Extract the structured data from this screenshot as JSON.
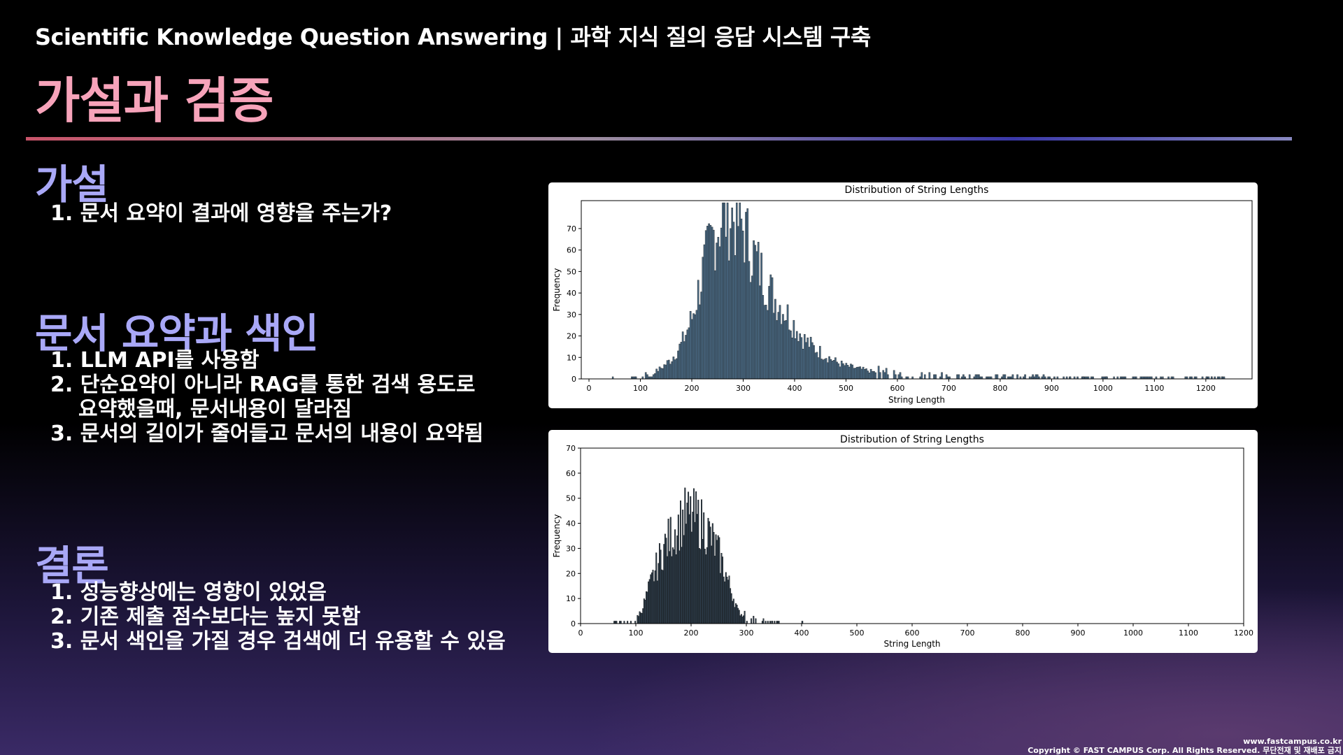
{
  "header": {
    "title": "Scientific Knowledge Question Answering | 과학 지식 질의 응답 시스템 구축"
  },
  "page_title": "가설과 검증",
  "sections": {
    "hypothesis": {
      "heading": "가설",
      "items": [
        "1. 문서 요약이 결과에 영향을 주는가?"
      ]
    },
    "method": {
      "heading": "문서 요약과 색인",
      "items": [
        "1. LLM API를 사용함",
        "2. 단순요약이 아니라 RAG를 통한 검색 용도로",
        "요약했을때, 문서내용이 달라짐",
        "3. 문서의 길이가 줄어들고 문서의 내용이 요약됨"
      ]
    },
    "conclusion": {
      "heading": "결론",
      "items": [
        "1. 성능향상에는 영향이 있었음",
        "2. 기존 제출 점수보다는 높지 못함",
        "3. 문서 색인을 가질 경우 검색에 더 유용할 수 있음"
      ]
    }
  },
  "footer": {
    "url": "www.fastcampus.co.kr",
    "copyright": "Copyright © FAST CAMPUS Corp. All Rights Reserved. 무단전재 및 재배포 금지"
  },
  "colors": {
    "accent_pink": "#f7a3ba",
    "accent_lavender": "#a9a8f7",
    "bar_fill_1": "#4a6a84",
    "bar_fill_2": "#2e3e4c"
  },
  "chart_data": [
    {
      "type": "bar",
      "title": "Distribution of String Lengths",
      "xlabel": "String Length",
      "ylabel": "Frequency",
      "xlim": [
        -15,
        1290
      ],
      "ylim": [
        0,
        83
      ],
      "xticks": [
        0,
        100,
        200,
        300,
        400,
        500,
        600,
        700,
        800,
        900,
        1000,
        1100,
        1200
      ],
      "yticks": [
        0,
        10,
        20,
        30,
        40,
        50,
        60,
        70
      ],
      "grid": false,
      "peaks": [
        [
          40,
          0
        ],
        [
          80,
          0
        ],
        [
          100,
          1
        ],
        [
          120,
          2
        ],
        [
          140,
          5
        ],
        [
          160,
          9
        ],
        [
          180,
          16
        ],
        [
          200,
          28
        ],
        [
          220,
          48
        ],
        [
          240,
          66
        ],
        [
          260,
          76
        ],
        [
          280,
          76
        ],
        [
          300,
          70
        ],
        [
          320,
          58
        ],
        [
          340,
          47
        ],
        [
          360,
          38
        ],
        [
          380,
          32
        ],
        [
          400,
          25
        ],
        [
          420,
          18
        ],
        [
          440,
          14
        ],
        [
          460,
          11
        ],
        [
          480,
          8
        ],
        [
          500,
          6
        ],
        [
          520,
          5
        ],
        [
          560,
          3
        ],
        [
          600,
          2
        ],
        [
          650,
          2
        ],
        [
          700,
          1
        ],
        [
          750,
          1
        ],
        [
          800,
          1
        ],
        [
          850,
          1
        ],
        [
          900,
          0.5
        ],
        [
          950,
          0.5
        ],
        [
          1000,
          0.4
        ],
        [
          1100,
          0.3
        ],
        [
          1240,
          0
        ]
      ],
      "sparse_points": [
        [
          45,
          1
        ],
        [
          90,
          1
        ],
        [
          860,
          1
        ],
        [
          895,
          1
        ],
        [
          935,
          1
        ],
        [
          960,
          1
        ],
        [
          1005,
          1
        ],
        [
          1020,
          1
        ],
        [
          1115,
          1
        ],
        [
          1200,
          1
        ],
        [
          1210,
          1
        ],
        [
          1230,
          1
        ]
      ]
    },
    {
      "type": "bar",
      "title": "Distribution of String Lengths",
      "xlabel": "String Length",
      "ylabel": "Frequency",
      "xlim": [
        0,
        1200
      ],
      "ylim": [
        0,
        70
      ],
      "xticks": [
        0,
        100,
        200,
        300,
        400,
        500,
        600,
        700,
        800,
        900,
        1000,
        1100,
        1200
      ],
      "yticks": [
        0,
        10,
        20,
        30,
        40,
        50,
        60,
        70
      ],
      "grid": false,
      "peaks": [
        [
          60,
          0
        ],
        [
          80,
          0.5
        ],
        [
          95,
          1
        ],
        [
          110,
          5
        ],
        [
          130,
          18
        ],
        [
          150,
          30
        ],
        [
          170,
          37
        ],
        [
          190,
          43
        ],
        [
          210,
          42
        ],
        [
          230,
          37
        ],
        [
          250,
          28
        ],
        [
          270,
          15
        ],
        [
          285,
          5
        ],
        [
          300,
          2
        ],
        [
          320,
          1
        ],
        [
          340,
          0.5
        ],
        [
          360,
          0
        ]
      ],
      "sparse_points": [
        [
          345,
          1
        ],
        [
          400,
          1
        ]
      ]
    }
  ]
}
